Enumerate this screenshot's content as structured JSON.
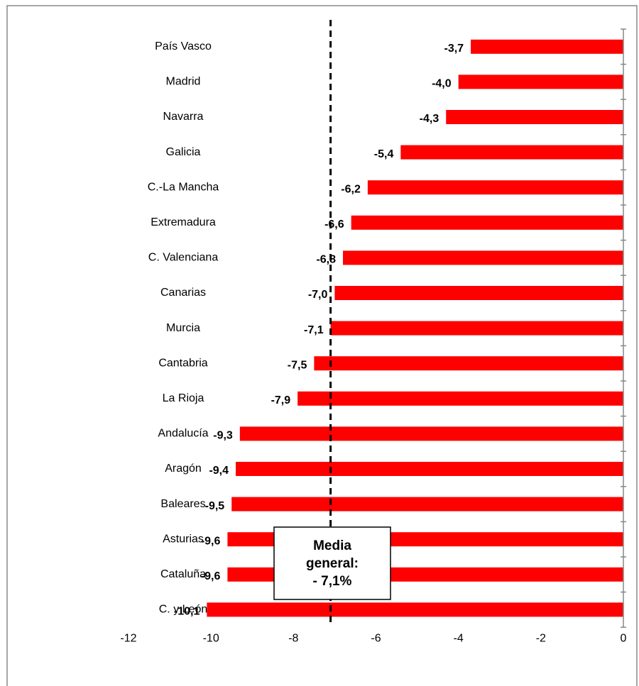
{
  "chart_data": {
    "type": "bar",
    "orientation": "horizontal",
    "categories": [
      "País Vasco",
      "Madrid",
      "Navarra",
      "Galicia",
      "C.-La Mancha",
      "Extremadura",
      "C. Valenciana",
      "Canarias",
      "Murcia",
      "Cantabria",
      "La Rioja",
      "Andalucía",
      "Aragón",
      "Baleares",
      "Asturias",
      "Cataluña",
      "C. y León"
    ],
    "values": [
      -3.7,
      -4.0,
      -4.3,
      -5.4,
      -6.2,
      -6.6,
      -6.8,
      -7.0,
      -7.1,
      -7.5,
      -7.9,
      -9.3,
      -9.4,
      -9.5,
      -9.6,
      -9.6,
      -10.1
    ],
    "value_labels": [
      "-3,7",
      "-4,0",
      "-4,3",
      "-5,4",
      "-6,2",
      "-6,6",
      "-6,8",
      "-7,0",
      "-7,1",
      "-7,5",
      "-7,9",
      "-9,3",
      "-9,4",
      "-9,5",
      "-9,6",
      "-9,6",
      "-10,1"
    ],
    "color": "#ff0000",
    "xlim": [
      -12,
      0
    ],
    "xticks": [
      -12,
      -10,
      -8,
      -6,
      -4,
      -2,
      0
    ],
    "mean_line": {
      "value": -7.1,
      "label": [
        "Media",
        "general:",
        "- 7,1%"
      ]
    },
    "grid": false
  }
}
